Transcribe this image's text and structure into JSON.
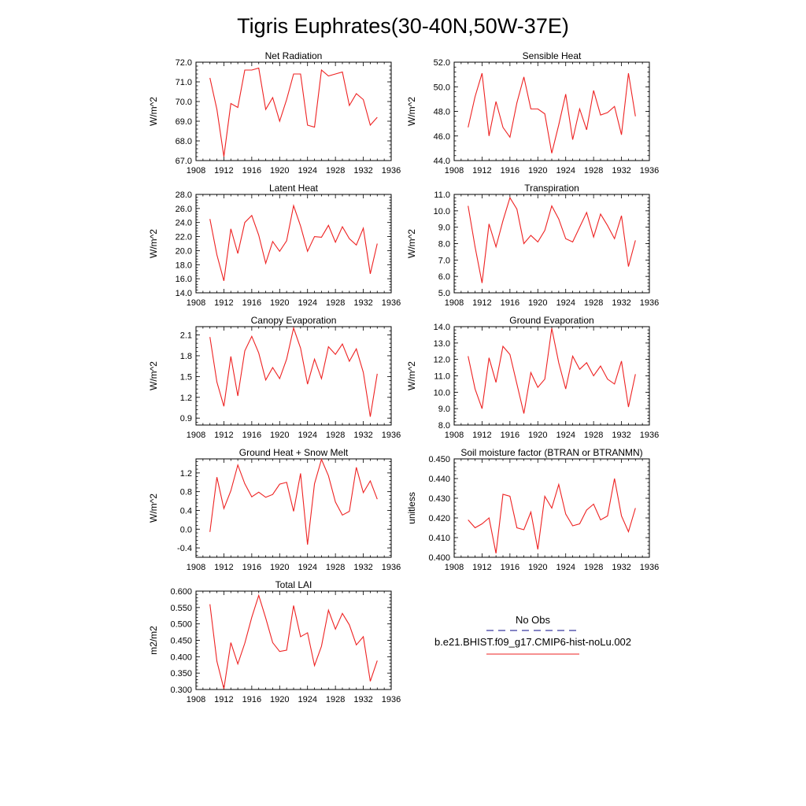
{
  "figure": {
    "title": "Tigris Euphrates(30-40N,50W-37E)",
    "colors": {
      "obs": "#3a3aa0",
      "model": "#ee2222",
      "axis": "#000000"
    }
  },
  "legend": {
    "obs_label": "No Obs",
    "model_label": "b.e21.BHIST.f09_g17.CMIP6-hist-noLu.002"
  },
  "chart_data": [
    {
      "type": "line",
      "title": "Net Radiation",
      "ylabel": "W/m^2",
      "xlim": [
        1908,
        1936
      ],
      "xticks": [
        1908,
        1912,
        1916,
        1920,
        1924,
        1928,
        1932,
        1936
      ],
      "ylim": [
        67.0,
        72.0
      ],
      "yticks": [
        67.0,
        68.0,
        69.0,
        70.0,
        71.0,
        72.0
      ],
      "yticklabels": [
        "67.0",
        "68.0",
        "69.0",
        "70.0",
        "71.0",
        "72.0"
      ],
      "x": [
        1910,
        1911,
        1912,
        1913,
        1914,
        1915,
        1916,
        1917,
        1918,
        1919,
        1920,
        1921,
        1922,
        1923,
        1924,
        1925,
        1926,
        1927,
        1928,
        1929,
        1930,
        1931,
        1932,
        1933,
        1934
      ],
      "series": [
        {
          "values": [
            71.2,
            69.6,
            67.2,
            69.9,
            69.7,
            71.6,
            71.6,
            71.7,
            69.6,
            70.2,
            69.0,
            70.1,
            71.4,
            71.4,
            68.8,
            68.7,
            71.6,
            71.3,
            71.4,
            71.5,
            69.8,
            70.4,
            70.1,
            68.8,
            69.2
          ]
        }
      ]
    },
    {
      "type": "line",
      "title": "Sensible Heat",
      "ylabel": "W/m^2",
      "xlim": [
        1908,
        1936
      ],
      "xticks": [
        1908,
        1912,
        1916,
        1920,
        1924,
        1928,
        1932,
        1936
      ],
      "ylim": [
        44.0,
        52.0
      ],
      "yticks": [
        44.0,
        46.0,
        48.0,
        50.0,
        52.0
      ],
      "yticklabels": [
        "44.0",
        "46.0",
        "48.0",
        "50.0",
        "52.0"
      ],
      "x": [
        1910,
        1911,
        1912,
        1913,
        1914,
        1915,
        1916,
        1917,
        1918,
        1919,
        1920,
        1921,
        1922,
        1923,
        1924,
        1925,
        1926,
        1927,
        1928,
        1929,
        1930,
        1931,
        1932,
        1933,
        1934
      ],
      "series": [
        {
          "values": [
            46.7,
            49.2,
            51.1,
            46.0,
            48.8,
            46.7,
            45.9,
            48.7,
            50.8,
            48.2,
            48.2,
            47.8,
            44.6,
            46.9,
            49.4,
            45.7,
            48.2,
            46.5,
            49.7,
            47.7,
            47.9,
            48.4,
            46.1,
            51.1,
            47.6
          ]
        }
      ]
    },
    {
      "type": "line",
      "title": "Latent Heat",
      "ylabel": "W/m^2",
      "xlim": [
        1908,
        1936
      ],
      "xticks": [
        1908,
        1912,
        1916,
        1920,
        1924,
        1928,
        1932,
        1936
      ],
      "ylim": [
        14.0,
        28.0
      ],
      "yticks": [
        14.0,
        16.0,
        18.0,
        20.0,
        22.0,
        24.0,
        26.0,
        28.0
      ],
      "yticklabels": [
        "14.0",
        "16.0",
        "18.0",
        "20.0",
        "22.0",
        "24.0",
        "26.0",
        "28.0"
      ],
      "x": [
        1910,
        1911,
        1912,
        1913,
        1914,
        1915,
        1916,
        1917,
        1918,
        1919,
        1920,
        1921,
        1922,
        1923,
        1924,
        1925,
        1926,
        1927,
        1928,
        1929,
        1930,
        1931,
        1932,
        1933,
        1934
      ],
      "series": [
        {
          "values": [
            24.5,
            19.4,
            15.7,
            23.1,
            19.6,
            24.0,
            25.0,
            22.2,
            18.2,
            21.3,
            19.9,
            21.4,
            26.4,
            23.5,
            19.9,
            22.0,
            21.9,
            23.6,
            21.2,
            23.4,
            21.7,
            20.8,
            23.2,
            16.7,
            21.0
          ]
        }
      ]
    },
    {
      "type": "line",
      "title": "Transpiration",
      "ylabel": "W/m^2",
      "xlim": [
        1908,
        1936
      ],
      "xticks": [
        1908,
        1912,
        1916,
        1920,
        1924,
        1928,
        1932,
        1936
      ],
      "ylim": [
        5.0,
        11.0
      ],
      "yticks": [
        5.0,
        6.0,
        7.0,
        8.0,
        9.0,
        10.0,
        11.0
      ],
      "yticklabels": [
        "5.0",
        "6.0",
        "7.0",
        "8.0",
        "9.0",
        "10.0",
        "11.0"
      ],
      "x": [
        1910,
        1911,
        1912,
        1913,
        1914,
        1915,
        1916,
        1917,
        1918,
        1919,
        1920,
        1921,
        1922,
        1923,
        1924,
        1925,
        1926,
        1927,
        1928,
        1929,
        1930,
        1931,
        1932,
        1933,
        1934
      ],
      "series": [
        {
          "values": [
            10.3,
            7.8,
            5.6,
            9.2,
            7.8,
            9.4,
            10.8,
            10.1,
            8.0,
            8.5,
            8.1,
            8.8,
            10.3,
            9.5,
            8.3,
            8.1,
            9.0,
            9.9,
            8.4,
            9.8,
            9.1,
            8.3,
            9.7,
            6.6,
            8.2
          ]
        }
      ]
    },
    {
      "type": "line",
      "title": "Canopy Evaporation",
      "ylabel": "W/m^2",
      "xlim": [
        1908,
        1936
      ],
      "xticks": [
        1908,
        1912,
        1916,
        1920,
        1924,
        1928,
        1932,
        1936
      ],
      "ylim": [
        0.8,
        2.22
      ],
      "yticks": [
        0.9,
        1.2,
        1.5,
        1.8,
        2.1
      ],
      "yticklabels": [
        "0.9",
        "1.2",
        "1.5",
        "1.8",
        "2.1"
      ],
      "x": [
        1910,
        1911,
        1912,
        1913,
        1914,
        1915,
        1916,
        1917,
        1918,
        1919,
        1920,
        1921,
        1922,
        1923,
        1924,
        1925,
        1926,
        1927,
        1928,
        1929,
        1930,
        1931,
        1932,
        1933,
        1934
      ],
      "series": [
        {
          "values": [
            2.07,
            1.42,
            1.07,
            1.79,
            1.22,
            1.87,
            2.08,
            1.84,
            1.45,
            1.63,
            1.47,
            1.75,
            2.2,
            1.91,
            1.39,
            1.75,
            1.47,
            1.93,
            1.82,
            1.97,
            1.72,
            1.9,
            1.56,
            0.92,
            1.54
          ]
        }
      ]
    },
    {
      "type": "line",
      "title": "Ground Evaporation",
      "ylabel": "W/m^2",
      "xlim": [
        1908,
        1936
      ],
      "xticks": [
        1908,
        1912,
        1916,
        1920,
        1924,
        1928,
        1932,
        1936
      ],
      "ylim": [
        8.0,
        14.0
      ],
      "yticks": [
        8.0,
        9.0,
        10.0,
        11.0,
        12.0,
        13.0,
        14.0
      ],
      "yticklabels": [
        "8.0",
        "9.0",
        "10.0",
        "11.0",
        "12.0",
        "13.0",
        "14.0"
      ],
      "x": [
        1910,
        1911,
        1912,
        1913,
        1914,
        1915,
        1916,
        1917,
        1918,
        1919,
        1920,
        1921,
        1922,
        1923,
        1924,
        1925,
        1926,
        1927,
        1928,
        1929,
        1930,
        1931,
        1932,
        1933,
        1934
      ],
      "series": [
        {
          "values": [
            12.2,
            10.2,
            9.0,
            12.1,
            10.6,
            12.8,
            12.3,
            10.5,
            8.7,
            11.2,
            10.3,
            10.8,
            13.9,
            11.8,
            10.2,
            12.2,
            11.4,
            11.8,
            11.0,
            11.6,
            10.8,
            10.5,
            11.9,
            9.1,
            11.1
          ]
        }
      ]
    },
    {
      "type": "line",
      "title": "Ground Heat + Snow Melt",
      "ylabel": "W/m^2",
      "xlim": [
        1908,
        1936
      ],
      "xticks": [
        1908,
        1912,
        1916,
        1920,
        1924,
        1928,
        1932,
        1936
      ],
      "ylim": [
        -0.6,
        1.5
      ],
      "yticks": [
        -0.4,
        0.0,
        0.4,
        0.8,
        1.2
      ],
      "yticklabels": [
        "-0.4",
        "0.0",
        "0.4",
        "0.8",
        "1.2"
      ],
      "x": [
        1910,
        1911,
        1912,
        1913,
        1914,
        1915,
        1916,
        1917,
        1918,
        1919,
        1920,
        1921,
        1922,
        1923,
        1924,
        1925,
        1926,
        1927,
        1928,
        1929,
        1930,
        1931,
        1932,
        1933,
        1934
      ],
      "series": [
        {
          "values": [
            -0.06,
            1.11,
            0.44,
            0.82,
            1.37,
            0.97,
            0.69,
            0.79,
            0.68,
            0.74,
            0.96,
            1.0,
            0.38,
            1.19,
            -0.33,
            0.97,
            1.49,
            1.14,
            0.58,
            0.3,
            0.38,
            1.32,
            0.78,
            1.03,
            0.64
          ]
        }
      ]
    },
    {
      "type": "line",
      "title": "Soil moisture factor (BTRAN or BTRANMN)",
      "ylabel": "unitless",
      "xlim": [
        1908,
        1936
      ],
      "xticks": [
        1908,
        1912,
        1916,
        1920,
        1924,
        1928,
        1932,
        1936
      ],
      "ylim": [
        0.4,
        0.45
      ],
      "yticks": [
        0.4,
        0.41,
        0.42,
        0.43,
        0.44,
        0.45
      ],
      "yticklabels": [
        "0.400",
        "0.410",
        "0.420",
        "0.430",
        "0.440",
        "0.450"
      ],
      "x": [
        1910,
        1911,
        1912,
        1913,
        1914,
        1915,
        1916,
        1917,
        1918,
        1919,
        1920,
        1921,
        1922,
        1923,
        1924,
        1925,
        1926,
        1927,
        1928,
        1929,
        1930,
        1931,
        1932,
        1933,
        1934
      ],
      "series": [
        {
          "values": [
            0.419,
            0.415,
            0.417,
            0.42,
            0.402,
            0.432,
            0.431,
            0.415,
            0.414,
            0.423,
            0.404,
            0.431,
            0.425,
            0.437,
            0.422,
            0.416,
            0.417,
            0.424,
            0.427,
            0.419,
            0.421,
            0.44,
            0.421,
            0.413,
            0.425
          ]
        }
      ]
    },
    {
      "type": "line",
      "title": "Total LAI",
      "ylabel": "m2/m2",
      "xlim": [
        1908,
        1936
      ],
      "xticks": [
        1908,
        1912,
        1916,
        1920,
        1924,
        1928,
        1932,
        1936
      ],
      "ylim": [
        0.3,
        0.6
      ],
      "yticks": [
        0.3,
        0.35,
        0.4,
        0.45,
        0.5,
        0.55,
        0.6
      ],
      "yticklabels": [
        "0.300",
        "0.350",
        "0.400",
        "0.450",
        "0.500",
        "0.550",
        "0.600"
      ],
      "x": [
        1910,
        1911,
        1912,
        1913,
        1914,
        1915,
        1916,
        1917,
        1918,
        1919,
        1920,
        1921,
        1922,
        1923,
        1924,
        1925,
        1926,
        1927,
        1928,
        1929,
        1930,
        1931,
        1932,
        1933,
        1934
      ],
      "series": [
        {
          "values": [
            0.56,
            0.386,
            0.302,
            0.443,
            0.378,
            0.441,
            0.52,
            0.587,
            0.518,
            0.443,
            0.416,
            0.42,
            0.556,
            0.461,
            0.473,
            0.373,
            0.432,
            0.542,
            0.484,
            0.532,
            0.497,
            0.436,
            0.461,
            0.325,
            0.388
          ]
        }
      ]
    }
  ]
}
